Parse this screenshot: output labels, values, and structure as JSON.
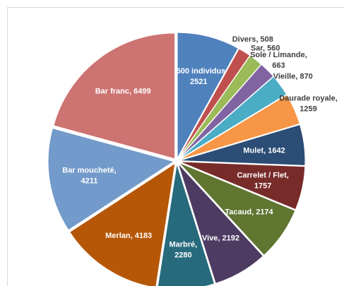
{
  "chart_data": {
    "type": "pie",
    "categories": [
      "< 500 individus",
      "Divers",
      "Sar",
      "Sole / Limande",
      "Vieille",
      "Daurade royale",
      "Mulet",
      "Carrelet / Flet",
      "Tacaud",
      "Vive",
      "Marbré",
      "Merlan",
      "Bar moucheté",
      "Bar franc"
    ],
    "values": [
      2521,
      508,
      560,
      663,
      870,
      1259,
      1642,
      1757,
      2174,
      2192,
      2280,
      4183,
      4211,
      6499
    ],
    "value_labels": [
      "< 500 individus,\n2521",
      "Divers, 508",
      "Sar, 560",
      "Sole / Limande,\n663",
      "Vieille, 870",
      "Daurade royale,\n1259",
      "Mulet, 1642",
      "Carrelet / Flet,\n1757",
      "Tacaud, 2174",
      "Vive, 2192",
      "Marbré,\n2280",
      "Merlan, 4183",
      "Bar moucheté,\n4211",
      "Bar franc, 6499"
    ],
    "colors": [
      "#4f81bd",
      "#c0504d",
      "#9bbb59",
      "#8064a2",
      "#4bacc6",
      "#f79646",
      "#2c4d75",
      "#772c2a",
      "#5f7530",
      "#4d3b62",
      "#276a7c",
      "#b65708",
      "#729aca",
      "#cd7371"
    ]
  }
}
